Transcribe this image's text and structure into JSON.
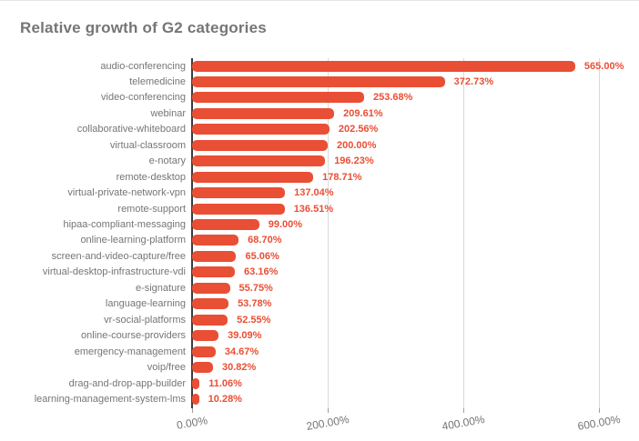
{
  "title": "Relative growth of G2 categories",
  "chart_data": {
    "type": "bar",
    "orientation": "horizontal",
    "title": "Relative growth of G2 categories",
    "categories": [
      "audio-conferencing",
      "telemedicine",
      "video-conferencing",
      "webinar",
      "collaborative-whiteboard",
      "virtual-classroom",
      "e-notary",
      "remote-desktop",
      "virtual-private-network-vpn",
      "remote-support",
      "hipaa-compliant-messaging",
      "online-learning-platform",
      "screen-and-video-capture/free",
      "virtual-desktop-infrastructure-vdi",
      "e-signature",
      "language-learning",
      "vr-social-platforms",
      "online-course-providers",
      "emergency-management",
      "voip/free",
      "drag-and-drop-app-builder",
      "learning-management-system-lms"
    ],
    "values": [
      565.0,
      372.73,
      253.68,
      209.61,
      202.56,
      200.0,
      196.23,
      178.71,
      137.04,
      136.51,
      99.0,
      68.7,
      65.06,
      63.16,
      55.75,
      53.78,
      52.55,
      39.09,
      34.67,
      30.82,
      11.06,
      10.28
    ],
    "value_labels": [
      "565.00%",
      "372.73%",
      "253.68%",
      "209.61%",
      "202.56%",
      "200.00%",
      "196.23%",
      "178.71%",
      "137.04%",
      "136.51%",
      "99.00%",
      "68.70%",
      "65.06%",
      "63.16%",
      "55.75%",
      "53.78%",
      "52.55%",
      "39.09%",
      "34.67%",
      "30.82%",
      "11.06%",
      "10.28%"
    ],
    "x_ticks": [
      {
        "label": "0.00%",
        "value": 0
      },
      {
        "label": "200.00%",
        "value": 200
      },
      {
        "label": "400.00%",
        "value": 400
      },
      {
        "label": "600.00%",
        "value": 600
      }
    ],
    "xlim": [
      0,
      600
    ],
    "grid": true,
    "legend": "none",
    "colors": {
      "bar": "#e94f34",
      "value_label": "#e94f34",
      "category_label": "#757575",
      "axis_label": "#757575",
      "gridline": "#d9d9d9",
      "axis_line": "#3c3c3c",
      "title": "#757575",
      "background": "#ffffff"
    }
  }
}
